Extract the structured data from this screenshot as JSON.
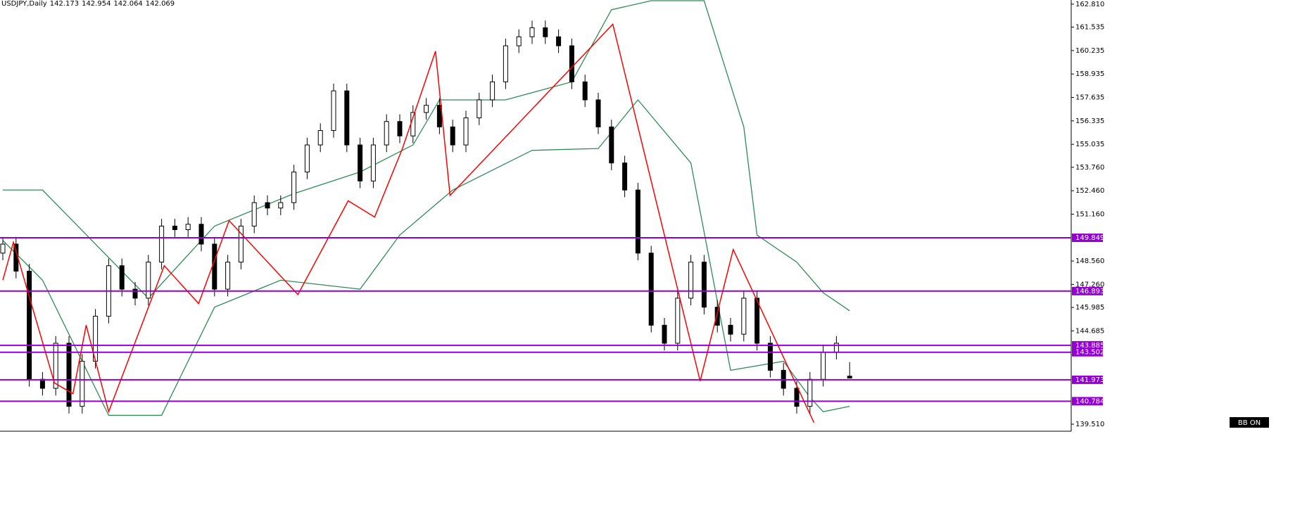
{
  "header": {
    "symbol": "USDJPY,Daily"
  },
  "chart_data": {
    "type": "candlestick",
    "open": [
      149,
      149.5,
      148,
      142,
      141.5,
      144,
      140.5,
      143,
      145.5,
      148.3,
      147,
      146.5,
      148.5,
      150.5,
      150.3,
      150.6,
      149.5,
      147,
      148.5,
      150.5,
      151.8,
      151.5,
      151.8,
      153.5,
      155,
      155.8,
      158,
      155,
      153,
      155,
      156.3,
      155.5,
      156.8,
      157.2,
      156,
      155,
      156.5,
      157.5,
      158.5,
      160.5,
      161,
      161.5,
      161,
      160.5,
      158.5,
      157.5,
      156,
      154,
      152.5,
      149,
      145,
      144,
      146.5,
      148.5,
      146,
      145,
      144.5,
      146.5,
      144,
      142.5,
      141.5,
      140.5,
      142,
      143.5,
      142.173
    ],
    "high": [
      149.9,
      149.9,
      148.4,
      142.4,
      144.4,
      144.4,
      143.4,
      145.9,
      148.7,
      148.7,
      147.4,
      148.9,
      150.9,
      150.9,
      151,
      151,
      149.9,
      148.9,
      150.9,
      152.2,
      152.2,
      152.2,
      153.9,
      155.4,
      156.2,
      158.4,
      158.4,
      155.4,
      155.4,
      156.7,
      156.7,
      157.2,
      157.6,
      157.6,
      156.4,
      156.9,
      157.9,
      158.9,
      160.9,
      161.4,
      161.9,
      161.9,
      161.4,
      160.9,
      158.9,
      157.9,
      156.4,
      154.4,
      152.9,
      149.4,
      145.4,
      146.9,
      148.9,
      148.9,
      146.4,
      145.4,
      146.9,
      146.9,
      144.4,
      142.9,
      141.9,
      142.4,
      143.9,
      144.4,
      142.954
    ],
    "low": [
      148.6,
      147.6,
      141.6,
      141.1,
      141.1,
      140.1,
      140.1,
      142.6,
      145.1,
      146.6,
      146.1,
      146.1,
      148.1,
      149.9,
      149.9,
      149.1,
      146.6,
      146.6,
      148.1,
      150.1,
      151.1,
      151.1,
      151.4,
      153.1,
      154.6,
      155.4,
      154.6,
      152.6,
      152.6,
      154.6,
      155.1,
      155.1,
      156.4,
      155.6,
      154.6,
      154.6,
      156.1,
      157.1,
      158.1,
      160.1,
      160.6,
      160.6,
      160.1,
      158.1,
      157.1,
      155.6,
      153.6,
      152.1,
      148.6,
      144.6,
      143.6,
      143.6,
      146.1,
      145.6,
      144.6,
      144.1,
      144.1,
      143.6,
      142.1,
      141.1,
      140.1,
      140.1,
      141.6,
      143.1,
      142.064
    ],
    "close": [
      149.5,
      148,
      142,
      141.5,
      144,
      140.5,
      143,
      145.5,
      148.3,
      147,
      146.5,
      148.5,
      150.5,
      150.3,
      150.6,
      149.5,
      147,
      148.5,
      150.5,
      151.8,
      151.5,
      151.8,
      153.5,
      155,
      155.8,
      158,
      155,
      153,
      155,
      156.3,
      155.5,
      156.8,
      157.2,
      156,
      155,
      156.5,
      157.5,
      158.5,
      160.5,
      161,
      161.5,
      161,
      160.5,
      158.5,
      157.5,
      156,
      154,
      152.5,
      149,
      145,
      144,
      146.5,
      148.5,
      146,
      145,
      144.5,
      146.5,
      144,
      142.5,
      141.5,
      140.5,
      142,
      143.5,
      144,
      142.069
    ],
    "bands": [
      {
        "color": "#2e8b57",
        "x": [
          0,
          3,
          5,
          11,
          16,
          22,
          27,
          31,
          33,
          38,
          43,
          46,
          49,
          53,
          56,
          57,
          60,
          62,
          64
        ],
        "values": [
          152.5,
          152.5,
          151,
          146.5,
          150.5,
          152.3,
          153.5,
          155,
          157.5,
          157.5,
          158.5,
          162.5,
          163,
          163,
          156,
          150,
          148.5,
          146.8,
          145.8
        ]
      },
      {
        "color": "#2e8b57",
        "x": [
          0,
          3,
          8,
          12,
          16,
          21,
          27,
          30,
          34,
          40,
          45,
          48,
          52,
          55,
          59,
          61,
          62,
          64
        ],
        "values": [
          149.7,
          147.5,
          140,
          140,
          146,
          147.5,
          147,
          150,
          152.5,
          154.7,
          154.8,
          157.5,
          154,
          142.5,
          143,
          141,
          140.2,
          140.5
        ]
      }
    ],
    "zigzag": {
      "color": "#ff0000",
      "x": [
        0,
        0.8,
        3.9,
        5.3,
        6.3,
        8,
        12.2,
        14.8,
        17.1,
        22.3,
        26.1,
        28.1,
        30.2,
        32.7,
        33.8,
        46.1,
        52.7,
        55.2,
        61.3
      ],
      "values": [
        147.5,
        149.6,
        141.8,
        141.2,
        145,
        140.2,
        148.3,
        146.2,
        150.8,
        146.7,
        151.9,
        151,
        154.8,
        160.2,
        152.2,
        161.7,
        141.9,
        149.2,
        139.6
      ]
    },
    "levels": {
      "color": "#9400d3",
      "values": [
        149.849,
        146.893,
        143.885,
        143.502,
        141.973,
        140.784
      ]
    },
    "ylim": [
      139.12,
      163.04
    ],
    "yticks": [
      {
        "value": 162.81,
        "label": "162.810"
      },
      161.535,
      160.235,
      158.935,
      157.635,
      156.335,
      155.035,
      {
        "value": 153.76,
        "label": "153.760"
      },
      {
        "value": 152.46,
        "label": "152.460"
      },
      {
        "value": 151.16,
        "label": "151.160"
      },
      {
        "value": 148.56,
        "label": "148.560"
      },
      {
        "value": 147.26,
        "label": "147.260"
      },
      145.985,
      144.685,
      {
        "value": 139.51,
        "label": "139.510"
      }
    ],
    "bb_label": "BB ON"
  }
}
